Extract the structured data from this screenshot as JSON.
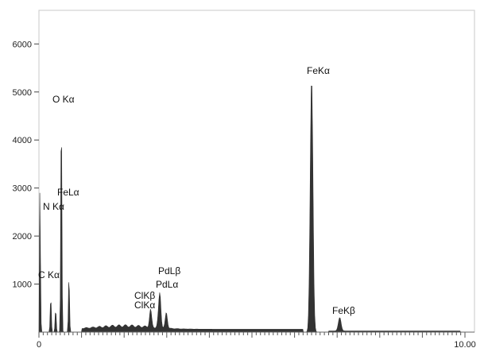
{
  "chart_data": {
    "type": "area",
    "title": "",
    "xlabel": "",
    "ylabel": "",
    "xlim": [
      0,
      10
    ],
    "ylim": [
      0,
      6700
    ],
    "x_tick_labels": [
      {
        "x": 0,
        "label": "0"
      },
      {
        "x": 10,
        "label": "10.00"
      }
    ],
    "y_ticks": [
      1000,
      2000,
      3000,
      4000,
      5000,
      6000
    ],
    "peaks": [
      {
        "name": "C Kα",
        "x": 0.277,
        "y": 740
      },
      {
        "name": "N Kα",
        "x": 0.392,
        "y": 480
      },
      {
        "name": "O Kα",
        "x": 0.525,
        "y": 4700
      },
      {
        "name": "FeLα",
        "x": 0.705,
        "y": 1180
      },
      {
        "name": "ClKα",
        "x": 2.62,
        "y": 370
      },
      {
        "name": "ClKβ",
        "x": 2.81,
        "y": 180
      },
      {
        "name": "PdLα",
        "x": 2.84,
        "y": 640
      },
      {
        "name": "PdLβ",
        "x": 2.99,
        "y": 330
      },
      {
        "name": "FeKα",
        "x": 6.4,
        "y": 5300
      },
      {
        "name": "FeKβ",
        "x": 7.06,
        "y": 280
      }
    ],
    "fill_color": "#333333",
    "grid": false
  }
}
